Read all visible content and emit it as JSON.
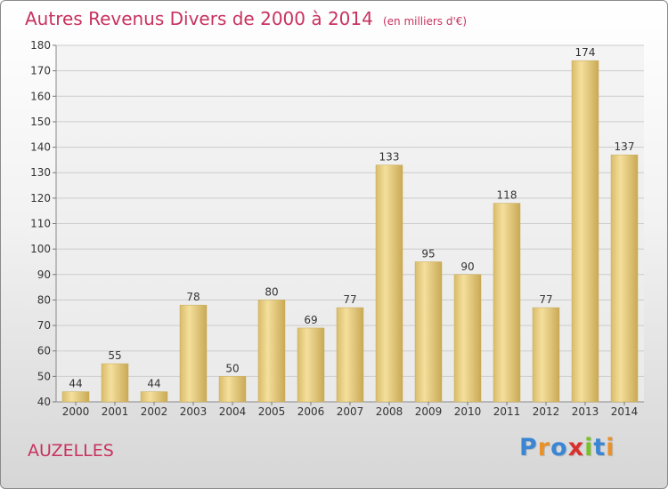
{
  "title": "Autres Revenus Divers de 2000 à 2014",
  "unit": "(en milliers d'€)",
  "place": "AUZELLES",
  "logo": {
    "letters": [
      "P",
      "r",
      "o",
      "x",
      "i",
      "t",
      "i"
    ],
    "colors": [
      "#3a86d4",
      "#e8912a",
      "#3a86d4",
      "#d8312d",
      "#7bbf2a",
      "#3a86d4",
      "#e8912a"
    ]
  },
  "chart_data": {
    "type": "bar",
    "categories": [
      "2000",
      "2001",
      "2002",
      "2003",
      "2004",
      "2005",
      "2006",
      "2007",
      "2008",
      "2009",
      "2010",
      "2011",
      "2012",
      "2013",
      "2014"
    ],
    "values": [
      44,
      55,
      44,
      78,
      50,
      80,
      69,
      77,
      133,
      95,
      90,
      118,
      77,
      174,
      137
    ],
    "ylim": [
      40,
      180
    ],
    "yticks": [
      40,
      50,
      60,
      70,
      80,
      90,
      100,
      110,
      120,
      130,
      140,
      150,
      160,
      170,
      180
    ],
    "grid": true,
    "bar_color": "#e9cf82"
  }
}
